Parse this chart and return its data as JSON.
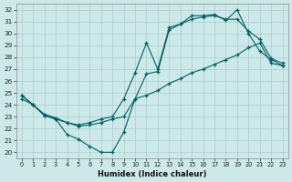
{
  "xlabel": "Humidex (Indice chaleur)",
  "xlim": [
    -0.5,
    23.5
  ],
  "ylim": [
    19.5,
    32.5
  ],
  "xticks": [
    0,
    1,
    2,
    3,
    4,
    5,
    6,
    7,
    8,
    9,
    10,
    11,
    12,
    13,
    14,
    15,
    16,
    17,
    18,
    19,
    20,
    21,
    22,
    23
  ],
  "yticks": [
    20,
    21,
    22,
    23,
    24,
    25,
    26,
    27,
    28,
    29,
    30,
    31,
    32
  ],
  "bg_color": "#cce8e8",
  "grid_color": "#aacece",
  "line_color": "#006060",
  "line1_x": [
    0,
    1,
    2,
    3,
    4,
    5,
    6,
    7,
    8,
    9,
    10,
    11,
    12,
    13,
    14,
    15,
    16,
    17,
    18,
    19,
    20,
    21,
    22,
    23
  ],
  "line1_y": [
    24.8,
    24.0,
    23.1,
    22.8,
    21.5,
    21.1,
    20.5,
    20.0,
    20.0,
    21.7,
    24.5,
    26.6,
    26.8,
    30.3,
    30.8,
    31.2,
    31.4,
    31.5,
    31.2,
    31.2,
    30.2,
    29.5,
    27.9,
    27.5
  ],
  "line2_x": [
    0,
    1,
    2,
    3,
    4,
    5,
    6,
    7,
    8,
    9,
    10,
    11,
    12,
    13,
    14,
    15,
    16,
    17,
    18,
    19,
    20,
    21,
    22,
    23
  ],
  "line2_y": [
    24.8,
    24.0,
    23.1,
    22.8,
    22.5,
    22.3,
    22.5,
    22.8,
    23.0,
    24.5,
    26.7,
    29.2,
    27.0,
    30.5,
    30.8,
    31.5,
    31.5,
    31.6,
    31.1,
    32.0,
    30.0,
    28.5,
    27.8,
    27.3
  ],
  "line3_x": [
    0,
    1,
    2,
    3,
    4,
    5,
    6,
    7,
    8,
    9,
    10,
    11,
    12,
    13,
    14,
    15,
    16,
    17,
    18,
    19,
    20,
    21,
    22,
    23
  ],
  "line3_y": [
    24.5,
    24.0,
    23.2,
    22.9,
    22.5,
    22.2,
    22.3,
    22.5,
    22.8,
    23.0,
    24.5,
    24.8,
    25.2,
    25.8,
    26.2,
    26.7,
    27.0,
    27.4,
    27.8,
    28.2,
    28.8,
    29.2,
    27.5,
    27.3
  ]
}
